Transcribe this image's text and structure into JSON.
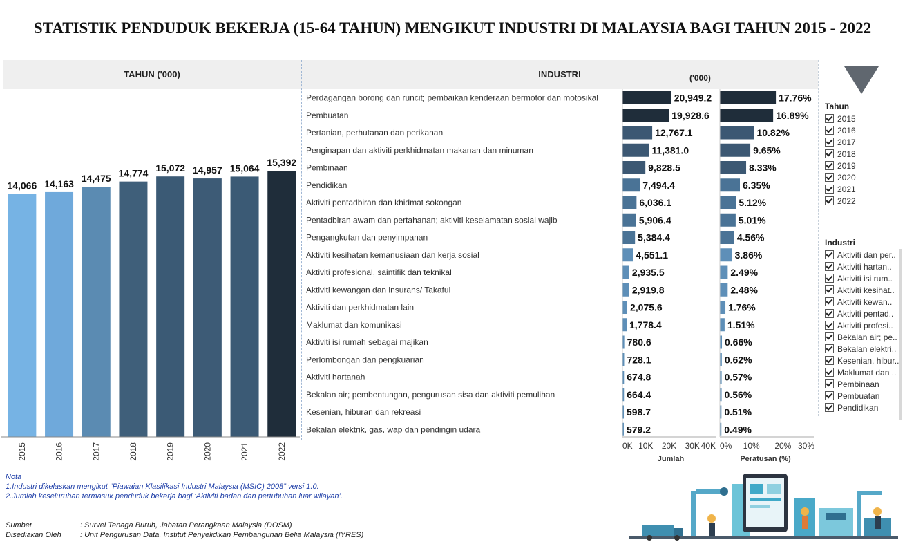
{
  "title": "STATISTIK PENDUDUK BEKERJA (15-64 TAHUN) MENGIKUT INDUSTRI DI MALAYSIA BAGI TAHUN 2015 - 2022",
  "headers": {
    "left": "TAHUN ('000)",
    "middle": "INDUSTRI",
    "unit": "('000)"
  },
  "chart_data": [
    {
      "type": "bar",
      "title": "TAHUN ('000)",
      "categories": [
        "2015",
        "2016",
        "2017",
        "2018",
        "2019",
        "2020",
        "2021",
        "2022"
      ],
      "values": [
        14066,
        14163,
        14475,
        14774,
        15072,
        14957,
        15064,
        15392
      ],
      "value_labels": [
        "14,066",
        "14,163",
        "14,475",
        "14,774",
        "15,072",
        "14,957",
        "15,064",
        "15,392"
      ],
      "colors": [
        "#76b3e4",
        "#6fa9db",
        "#5b8bb2",
        "#3f5f7a",
        "#3b5a75",
        "#3d5b76",
        "#3b5a75",
        "#1f2d3a"
      ],
      "ylim": [
        0,
        16000
      ],
      "grid": false
    },
    {
      "type": "bar",
      "orientation": "horizontal",
      "xlabel": "Jumlah",
      "categories": [
        "Perdagangan borong dan runcit; pembaikan kenderaan bermotor dan motosikal",
        "Pembuatan",
        "Pertanian, perhutanan dan perikanan",
        "Penginapan dan aktiviti perkhidmatan makanan dan minuman",
        "Pembinaan",
        "Pendidikan",
        "Aktiviti pentadbiran dan khidmat sokongan",
        "Pentadbiran awam dan pertahanan; aktiviti keselamatan sosial wajib",
        "Pengangkutan dan penyimpanan",
        "Aktiviti kesihatan kemanusiaan dan kerja sosial",
        "Aktiviti profesional, saintifik dan teknikal",
        "Aktiviti kewangan dan insurans/ Takaful",
        "Aktiviti dan perkhidmatan lain",
        "Maklumat dan komunikasi",
        "Aktiviti isi rumah sebagai majikan",
        "Perlombongan dan pengkuarian",
        "Aktiviti hartanah",
        "Bekalan air; pembentungan, pengurusan sisa dan aktiviti pemulihan",
        "Kesenian, hiburan dan rekreasi",
        "Bekalan elektrik, gas, wap dan pendingin udara"
      ],
      "values": [
        20949.2,
        19928.6,
        12767.1,
        11381.0,
        9828.5,
        7494.4,
        6036.1,
        5906.4,
        5384.4,
        4551.1,
        2935.5,
        2919.8,
        2075.6,
        1778.4,
        780.6,
        728.1,
        674.8,
        664.4,
        598.7,
        579.2
      ],
      "value_labels": [
        "20,949.2",
        "19,928.6",
        "12,767.1",
        "11,381.0",
        "9,828.5",
        "7,494.4",
        "6,036.1",
        "5,906.4",
        "5,384.4",
        "4,551.1",
        "2,935.5",
        "2,919.8",
        "2,075.6",
        "1,778.4",
        "780.6",
        "728.1",
        "674.8",
        "664.4",
        "598.7",
        "579.2"
      ],
      "xlim": [
        0,
        40000
      ],
      "xticks": [
        "0K",
        "10K",
        "20K",
        "30K",
        "40K"
      ]
    },
    {
      "type": "bar",
      "orientation": "horizontal",
      "xlabel": "Peratusan (%)",
      "values": [
        17.76,
        16.89,
        10.82,
        9.65,
        8.33,
        6.35,
        5.12,
        5.01,
        4.56,
        3.86,
        2.49,
        2.48,
        1.76,
        1.51,
        0.66,
        0.62,
        0.57,
        0.56,
        0.51,
        0.49
      ],
      "value_labels": [
        "17.76%",
        "16.89%",
        "10.82%",
        "9.65%",
        "8.33%",
        "6.35%",
        "5.12%",
        "5.01%",
        "4.56%",
        "3.86%",
        "2.49%",
        "2.48%",
        "1.76%",
        "1.51%",
        "0.66%",
        "0.62%",
        "0.57%",
        "0.56%",
        "0.51%",
        "0.49%"
      ],
      "xlim": [
        0,
        30
      ],
      "xticks": [
        "0%",
        "10%",
        "20%",
        "30%"
      ]
    }
  ],
  "filters": {
    "tahun": {
      "label": "Tahun",
      "items": [
        "2015",
        "2016",
        "2017",
        "2018",
        "2019",
        "2020",
        "2021",
        "2022"
      ]
    },
    "industri": {
      "label": "Industri",
      "items": [
        "Aktiviti dan per..",
        "Aktiviti hartan..",
        "Aktiviti isi rum..",
        "Aktiviti kesihat..",
        "Aktiviti kewan..",
        "Aktiviti pentad..",
        "Aktiviti profesi..",
        "Bekalan air; pe..",
        "Bekalan elektri..",
        "Kesenian, hibur..",
        "Maklumat dan ..",
        "Pembinaan",
        "Pembuatan",
        "Pendidikan"
      ]
    }
  },
  "notes": {
    "heading": "Nota",
    "lines": [
      "1.Industri dikelaskan mengikut “Piawaian Klasifikasi Industri Malaysia (MSIC) 2008” versi 1.0.",
      "2.Jumlah keseluruhan termasuk penduduk bekerja bagi ‘Aktiviti badan dan pertubuhan luar wilayah’."
    ]
  },
  "source": {
    "sumber_label": "Sumber",
    "sumber_value": ": Survei  Tenaga Buruh, Jabatan Perangkaan Malaysia (DOSM)",
    "disediakan_label": "Disediakan Oleh",
    "disediakan_value": ": Unit Pengurusan Data, Institut Penyelidikan Pembangunan Belia Malaysia (IYRES)"
  },
  "colors": {
    "dark": "#1f2d3a",
    "mid": "#3d5b76",
    "light": "#76b3e4"
  }
}
